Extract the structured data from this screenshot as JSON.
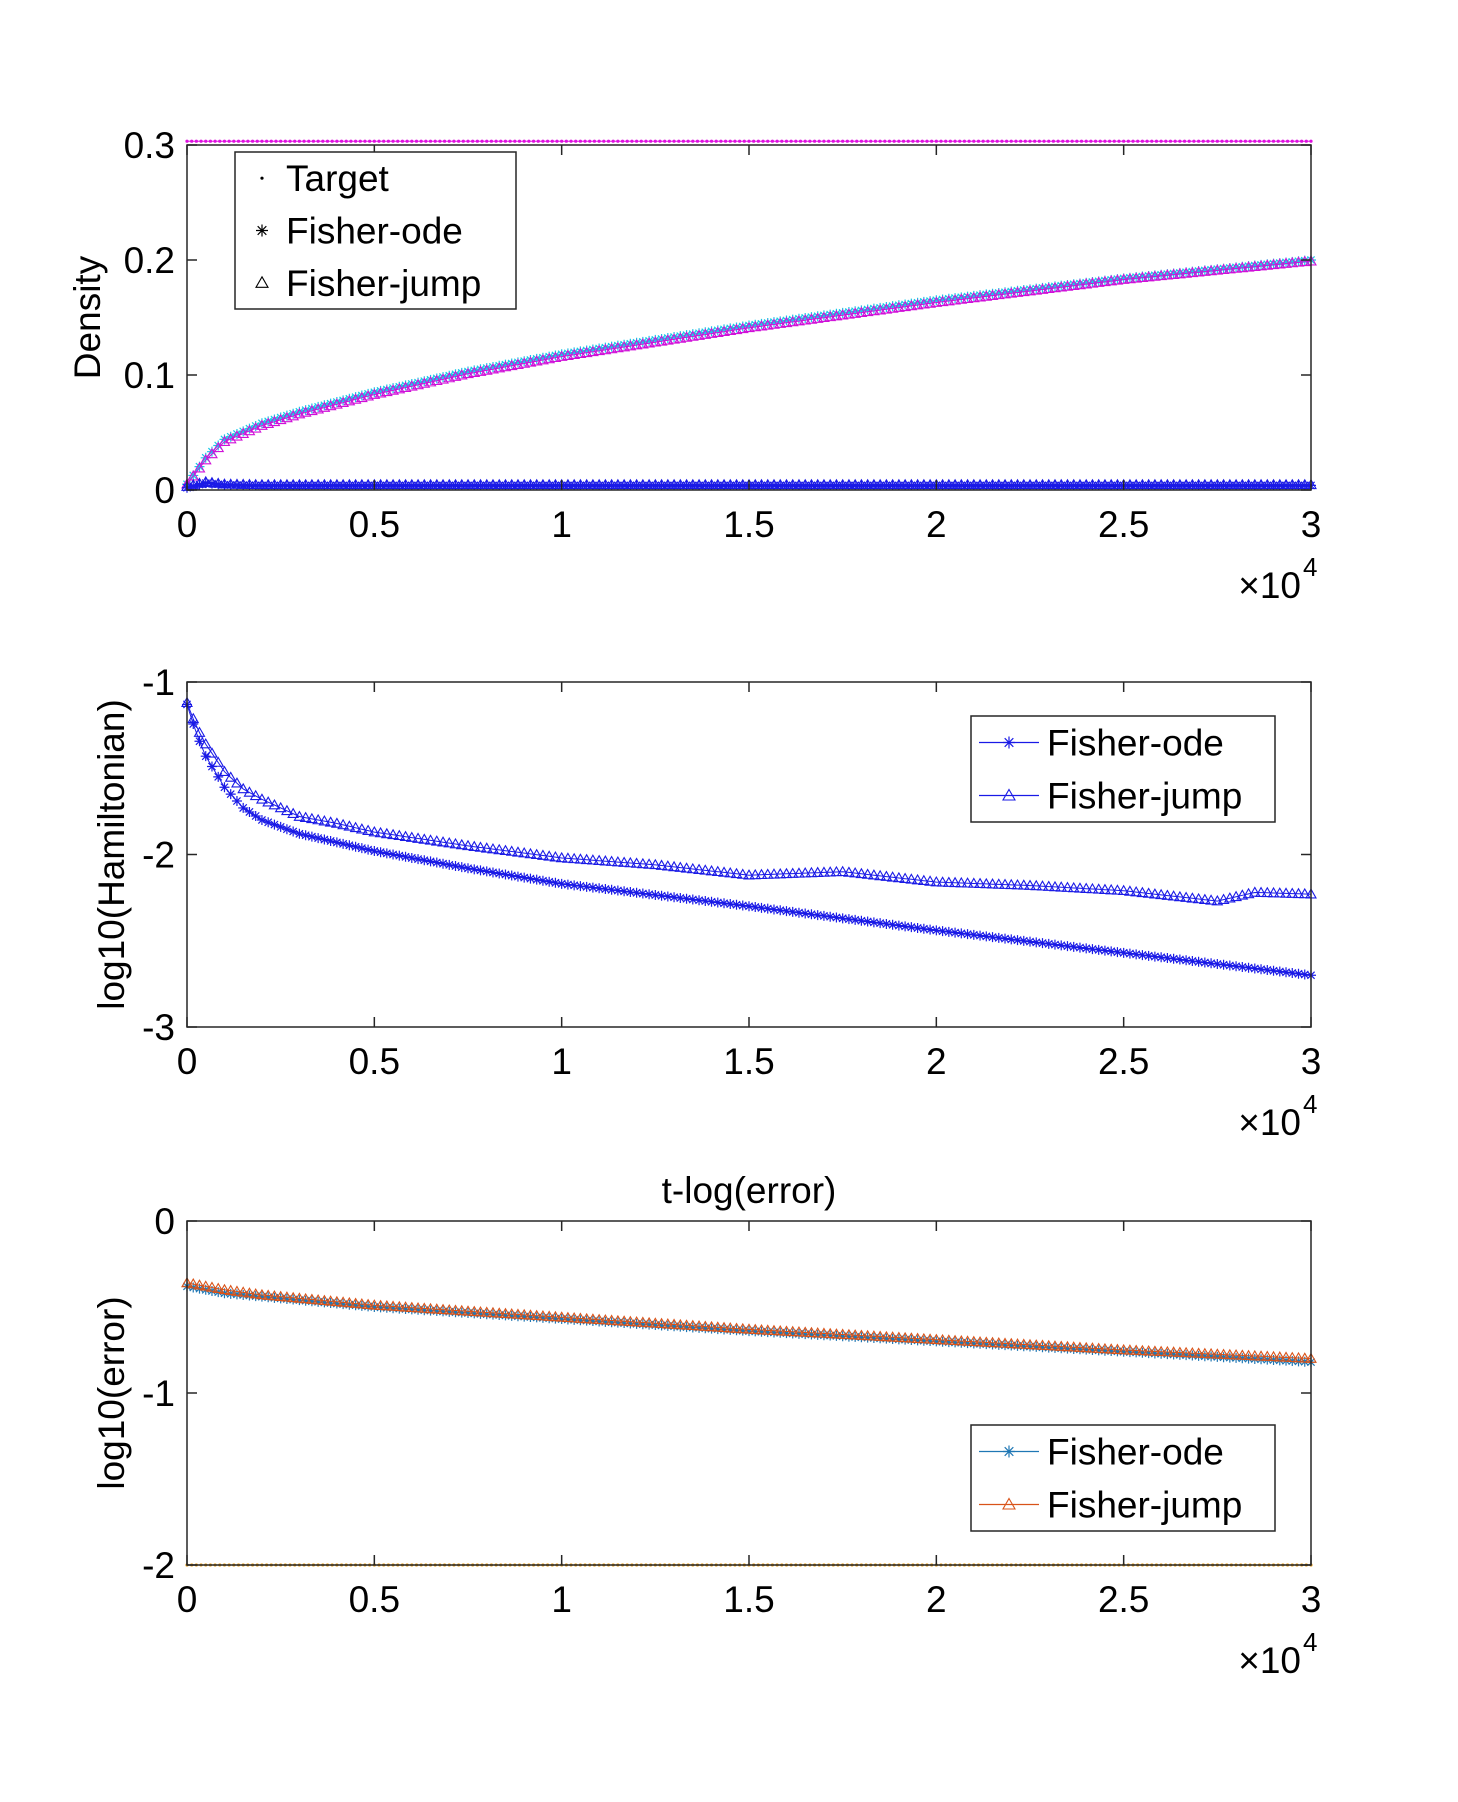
{
  "chart_data": [
    {
      "type": "line",
      "title": "",
      "xlabel": "",
      "ylabel": "Density",
      "x_exponent_label": "×10",
      "x_exponent_power": "4",
      "xlim": [
        0,
        30000
      ],
      "ylim": [
        0,
        0.3
      ],
      "xticks": [
        0,
        5000,
        10000,
        15000,
        20000,
        25000,
        30000
      ],
      "xtick_labels": [
        "0",
        "0.5",
        "1",
        "1.5",
        "2",
        "2.5",
        "3"
      ],
      "yticks": [
        0,
        0.1,
        0.2,
        0.3
      ],
      "ytick_labels": [
        "0",
        "0.1",
        "0.2",
        "0.3"
      ],
      "grid": false,
      "legend": {
        "placement": "top-left",
        "entries": [
          {
            "label": "Target",
            "marker": "dot"
          },
          {
            "label": "Fisher-ode",
            "marker": "star"
          },
          {
            "label": "Fisher-jump",
            "marker": "triangle"
          }
        ]
      },
      "series": [
        {
          "role": "target-high",
          "color": "#e010e0",
          "marker": "dot",
          "x": [
            0,
            30000
          ],
          "y": [
            0.3033,
            0.3033
          ]
        },
        {
          "role": "target-low",
          "color": "#1a1ae6",
          "marker": "dot",
          "x": [
            0,
            30000
          ],
          "y": [
            0.0033,
            0.0033
          ]
        },
        {
          "role": "ode-high",
          "color": "#19c8e6",
          "marker": "star",
          "x": [
            0,
            500,
            1000,
            2000,
            3000,
            5000,
            7500,
            10000,
            15000,
            20000,
            25000,
            30000
          ],
          "y": [
            0.005,
            0.028,
            0.044,
            0.058,
            0.068,
            0.085,
            0.103,
            0.118,
            0.143,
            0.165,
            0.184,
            0.2
          ]
        },
        {
          "role": "jump-high",
          "color": "#d010d8",
          "marker": "triangle",
          "x": [
            0,
            500,
            1000,
            2000,
            3000,
            5000,
            7500,
            10000,
            15000,
            20000,
            25000,
            30000
          ],
          "y": [
            0.005,
            0.026,
            0.042,
            0.056,
            0.066,
            0.083,
            0.101,
            0.116,
            0.141,
            0.163,
            0.183,
            0.199
          ]
        },
        {
          "role": "ode-low",
          "color": "#1a1ae6",
          "marker": "star",
          "x": [
            0,
            500,
            1000,
            2000,
            30000
          ],
          "y": [
            0.002,
            0.006,
            0.0045,
            0.004,
            0.004
          ]
        },
        {
          "role": "jump-low",
          "color": "#1a1ae6",
          "marker": "triangle",
          "x": [
            0,
            500,
            1000,
            2000,
            30000
          ],
          "y": [
            0.003,
            0.007,
            0.005,
            0.0045,
            0.0045
          ]
        }
      ]
    },
    {
      "type": "line",
      "title": "",
      "xlabel": "",
      "ylabel": "log10(Hamiltonian)",
      "x_exponent_label": "×10",
      "x_exponent_power": "4",
      "xlim": [
        0,
        30000
      ],
      "ylim": [
        -3,
        -1
      ],
      "xticks": [
        0,
        5000,
        10000,
        15000,
        20000,
        25000,
        30000
      ],
      "xtick_labels": [
        "0",
        "0.5",
        "1",
        "1.5",
        "2",
        "2.5",
        "3"
      ],
      "yticks": [
        -3,
        -2,
        -1
      ],
      "ytick_labels": [
        "-3",
        "-2",
        "-1"
      ],
      "grid": false,
      "legend": {
        "placement": "top-right",
        "entries": [
          {
            "label": "Fisher-ode",
            "marker": "star",
            "color": "#1a1ae6"
          },
          {
            "label": "Fisher-jump",
            "marker": "triangle",
            "color": "#1a1ae6"
          }
        ]
      },
      "series": [
        {
          "name": "Fisher-ode",
          "color": "#1a1ae6",
          "marker": "star",
          "x": [
            0,
            250,
            500,
            1000,
            1500,
            2000,
            3000,
            5000,
            7500,
            10000,
            15000,
            20000,
            25000,
            30000
          ],
          "y": [
            -1.13,
            -1.3,
            -1.43,
            -1.61,
            -1.73,
            -1.8,
            -1.88,
            -1.98,
            -2.08,
            -2.17,
            -2.3,
            -2.44,
            -2.57,
            -2.7
          ]
        },
        {
          "name": "Fisher-jump",
          "color": "#1a1ae6",
          "marker": "triangle",
          "x": [
            0,
            250,
            500,
            1000,
            1500,
            2000,
            3000,
            4000,
            5000,
            7500,
            10000,
            12500,
            15000,
            17500,
            20000,
            22500,
            25000,
            27500,
            28500,
            30000
          ],
          "y": [
            -1.12,
            -1.26,
            -1.36,
            -1.52,
            -1.62,
            -1.68,
            -1.78,
            -1.82,
            -1.87,
            -1.95,
            -2.02,
            -2.06,
            -2.12,
            -2.1,
            -2.16,
            -2.18,
            -2.21,
            -2.27,
            -2.22,
            -2.23
          ]
        }
      ]
    },
    {
      "type": "line",
      "title": "t-log(error)",
      "xlabel": "",
      "ylabel": "log10(error)",
      "x_exponent_label": "×10",
      "x_exponent_power": "4",
      "xlim": [
        0,
        30000
      ],
      "ylim": [
        -2,
        0
      ],
      "xticks": [
        0,
        5000,
        10000,
        15000,
        20000,
        25000,
        30000
      ],
      "xtick_labels": [
        "0",
        "0.5",
        "1",
        "1.5",
        "2",
        "2.5",
        "3"
      ],
      "yticks": [
        -2,
        -1,
        0
      ],
      "ytick_labels": [
        "-2",
        "-1",
        "0"
      ],
      "grid": false,
      "legend": {
        "placement": "bottom-right",
        "entries": [
          {
            "label": "Fisher-ode",
            "marker": "star",
            "color": "#1f77b4"
          },
          {
            "label": "Fisher-jump",
            "marker": "triangle",
            "color": "#d95319"
          }
        ]
      },
      "series": [
        {
          "name": "Fisher-ode",
          "color": "#1f77b4",
          "marker": "star",
          "x": [
            0,
            500,
            1000,
            2000,
            3000,
            5000,
            10000,
            15000,
            20000,
            25000,
            30000
          ],
          "y": [
            -0.38,
            -0.4,
            -0.42,
            -0.44,
            -0.46,
            -0.5,
            -0.57,
            -0.64,
            -0.7,
            -0.76,
            -0.82
          ]
        },
        {
          "name": "Fisher-jump",
          "color": "#d95319",
          "marker": "triangle",
          "x": [
            0,
            500,
            1000,
            2000,
            3000,
            5000,
            10000,
            15000,
            20000,
            25000,
            30000
          ],
          "y": [
            -0.36,
            -0.38,
            -0.4,
            -0.43,
            -0.45,
            -0.49,
            -0.56,
            -0.63,
            -0.69,
            -0.75,
            -0.8
          ]
        },
        {
          "role": "baseline",
          "color": "#e8a020",
          "marker": "dot",
          "x": [
            0,
            30000
          ],
          "y": [
            -2,
            -2
          ]
        }
      ]
    }
  ]
}
